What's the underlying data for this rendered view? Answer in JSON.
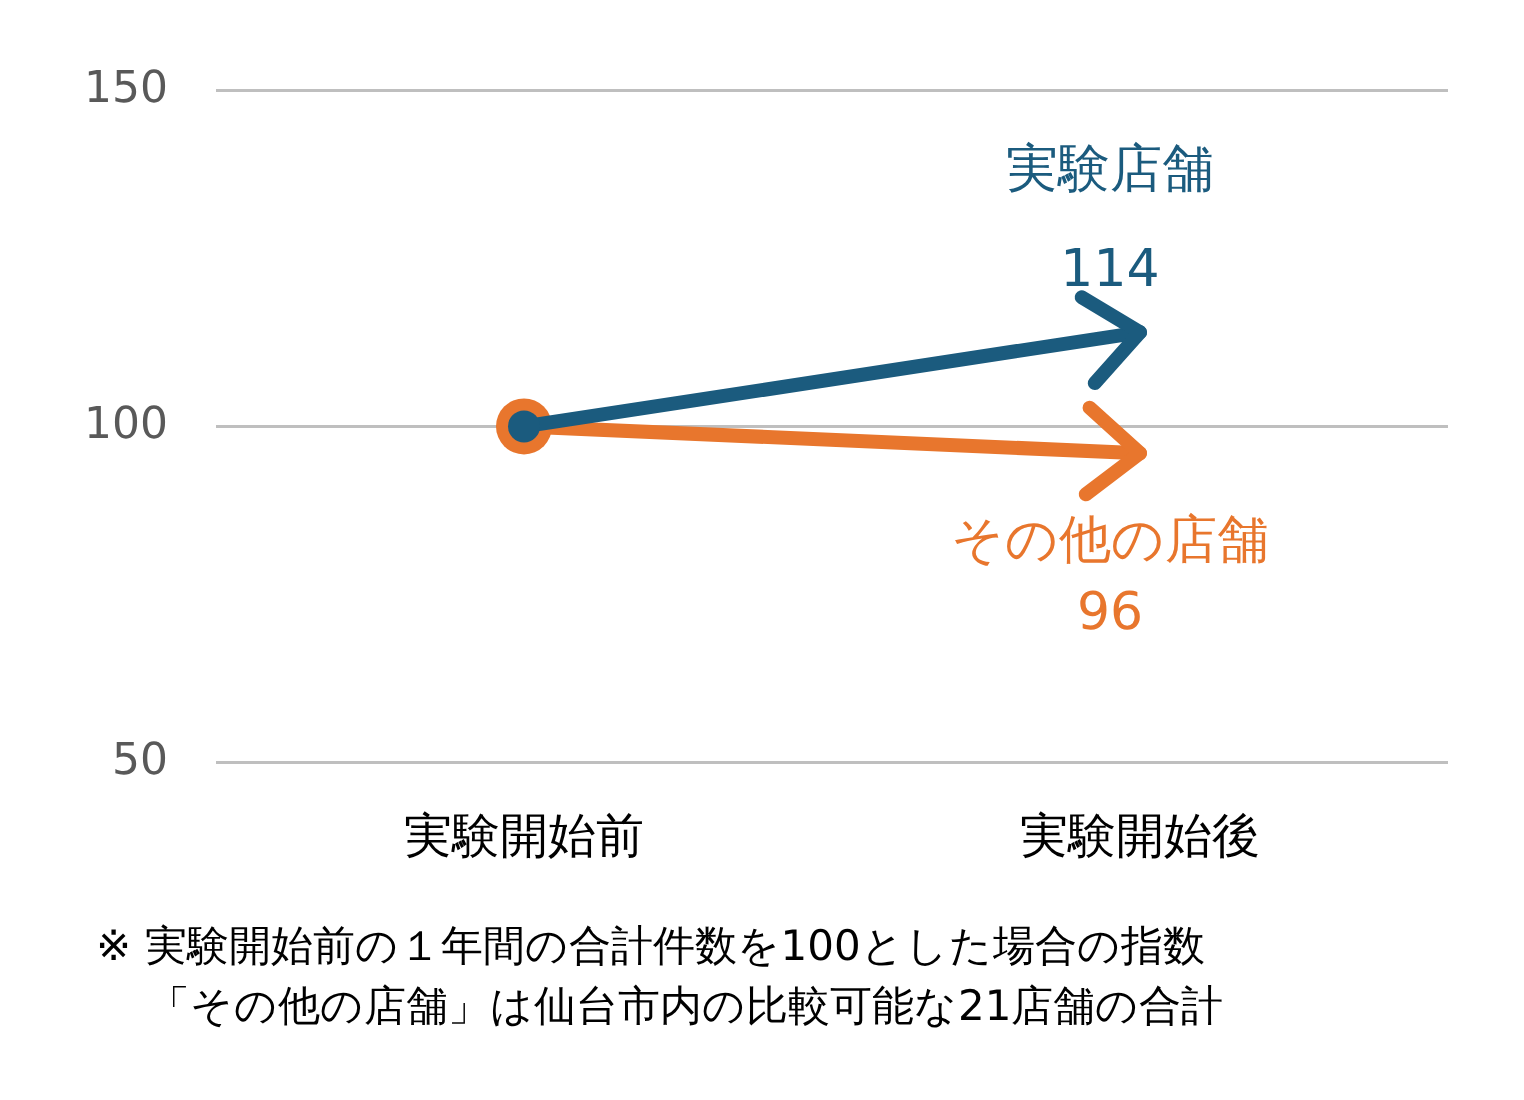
{
  "chart_data": {
    "type": "line",
    "categories": [
      "実験開始前",
      "実験開始後"
    ],
    "series": [
      {
        "name": "実験店舗",
        "color": "#1b5b7e",
        "values": [
          100,
          114
        ],
        "value_labels": [
          null,
          "114"
        ]
      },
      {
        "name": "その他の店舗",
        "color": "#e8762d",
        "values": [
          100,
          96
        ],
        "value_labels": [
          null,
          "96"
        ]
      }
    ],
    "ylim": [
      50,
      150
    ],
    "yticks": [
      50,
      100,
      150
    ],
    "grid": "y",
    "legend": false,
    "marker": "circle",
    "line_style": "solid",
    "annotations": [
      "※ 実験開始前の１年間の合計件数を100とした場合の指数",
      "「その他の店舗」は仙台市内の比較可能な21店舗の合計"
    ]
  }
}
